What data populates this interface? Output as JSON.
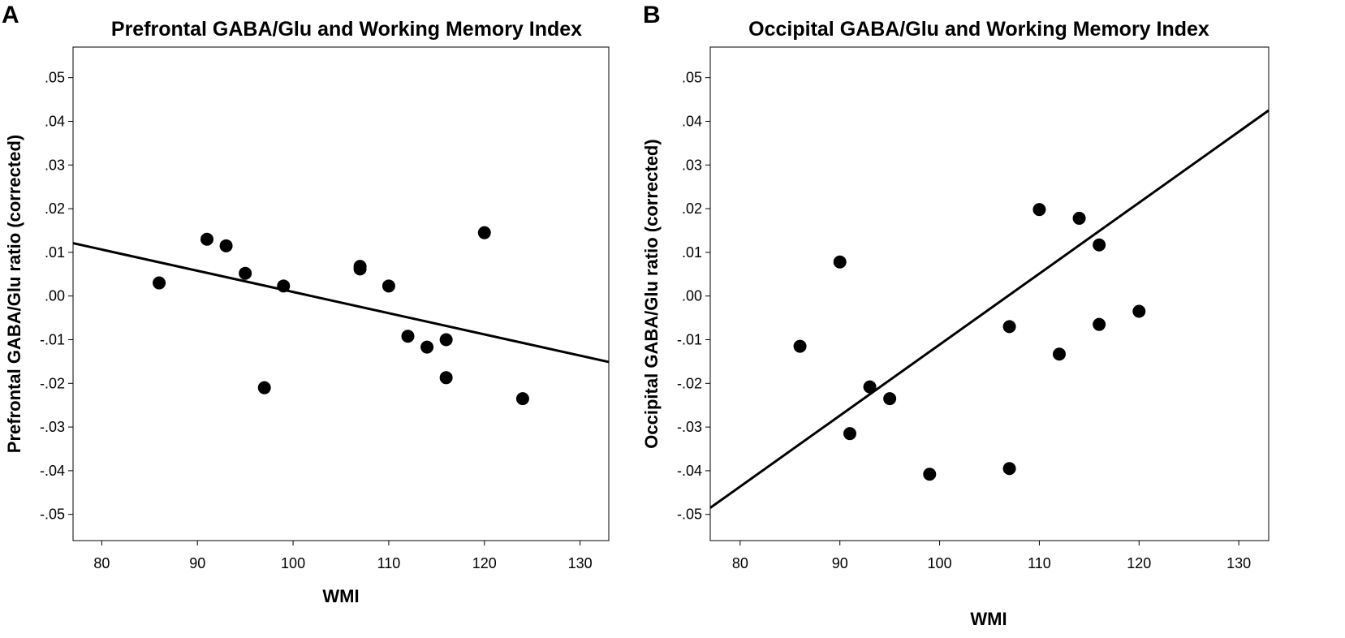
{
  "chart_data": [
    {
      "type": "scatter",
      "panel_label": "A",
      "title": "Prefrontal GABA/Glu and Working Memory Index",
      "xlabel": "WMI",
      "ylabel": "Prefrontal GABA/Glu ratio (corrected)",
      "xlim": [
        77,
        133
      ],
      "ylim": [
        -0.056,
        0.057
      ],
      "xticks": [
        80,
        90,
        100,
        110,
        120,
        130
      ],
      "xtick_labels": [
        "80",
        "90",
        "100",
        "110",
        "120",
        "130"
      ],
      "yticks": [
        0.05,
        0.04,
        0.03,
        0.02,
        0.01,
        0.0,
        -0.01,
        -0.02,
        -0.03,
        -0.04,
        -0.05
      ],
      "ytick_labels": [
        ".05",
        ".04",
        ".03",
        ".02",
        ".01",
        ".00",
        "-.01",
        "-.02",
        "-.03",
        "-.04",
        "-.05"
      ],
      "grid": false,
      "points": [
        {
          "x": 86,
          "y": 0.003
        },
        {
          "x": 91,
          "y": 0.013
        },
        {
          "x": 93,
          "y": 0.0115
        },
        {
          "x": 95,
          "y": 0.0052
        },
        {
          "x": 97,
          "y": -0.021
        },
        {
          "x": 99,
          "y": 0.0023
        },
        {
          "x": 107,
          "y": 0.0062
        },
        {
          "x": 107,
          "y": 0.0068
        },
        {
          "x": 110,
          "y": 0.0023
        },
        {
          "x": 112,
          "y": -0.0092
        },
        {
          "x": 114,
          "y": -0.0117
        },
        {
          "x": 116,
          "y": -0.01
        },
        {
          "x": 116,
          "y": -0.0187
        },
        {
          "x": 120,
          "y": 0.0145
        },
        {
          "x": 124,
          "y": -0.0235
        }
      ],
      "fit_line": {
        "x": [
          77,
          133
        ],
        "y": [
          0.0121,
          -0.0151
        ]
      }
    },
    {
      "type": "scatter",
      "panel_label": "B",
      "title": "Occipital GABA/Glu and Working Memory Index",
      "xlabel": "WMI",
      "ylabel": "Occipital GABA/Glu ratio (corrected)",
      "xlim": [
        77,
        133
      ],
      "ylim": [
        -0.056,
        0.057
      ],
      "xticks": [
        80,
        90,
        100,
        110,
        120,
        130
      ],
      "xtick_labels": [
        "80",
        "90",
        "100",
        "110",
        "120",
        "130"
      ],
      "yticks": [
        0.05,
        0.04,
        0.03,
        0.02,
        0.01,
        0.0,
        -0.01,
        -0.02,
        -0.03,
        -0.04,
        -0.05
      ],
      "ytick_labels": [
        ".05",
        ".04",
        ".03",
        ".02",
        ".01",
        ".00",
        "-.01",
        "-.02",
        "-.03",
        "-.04",
        "-.05"
      ],
      "grid": false,
      "points": [
        {
          "x": 86,
          "y": -0.0115
        },
        {
          "x": 90,
          "y": 0.0078
        },
        {
          "x": 91,
          "y": -0.0315
        },
        {
          "x": 93,
          "y": -0.0208
        },
        {
          "x": 95,
          "y": -0.0235
        },
        {
          "x": 99,
          "y": -0.0408
        },
        {
          "x": 107,
          "y": -0.007
        },
        {
          "x": 107,
          "y": -0.0395
        },
        {
          "x": 110,
          "y": 0.0198
        },
        {
          "x": 112,
          "y": -0.0133
        },
        {
          "x": 114,
          "y": 0.0178
        },
        {
          "x": 116,
          "y": 0.0117
        },
        {
          "x": 116,
          "y": -0.0065
        },
        {
          "x": 120,
          "y": -0.0035
        }
      ],
      "fit_line": {
        "x": [
          77,
          133
        ],
        "y": [
          -0.0485,
          0.0425
        ]
      }
    }
  ]
}
